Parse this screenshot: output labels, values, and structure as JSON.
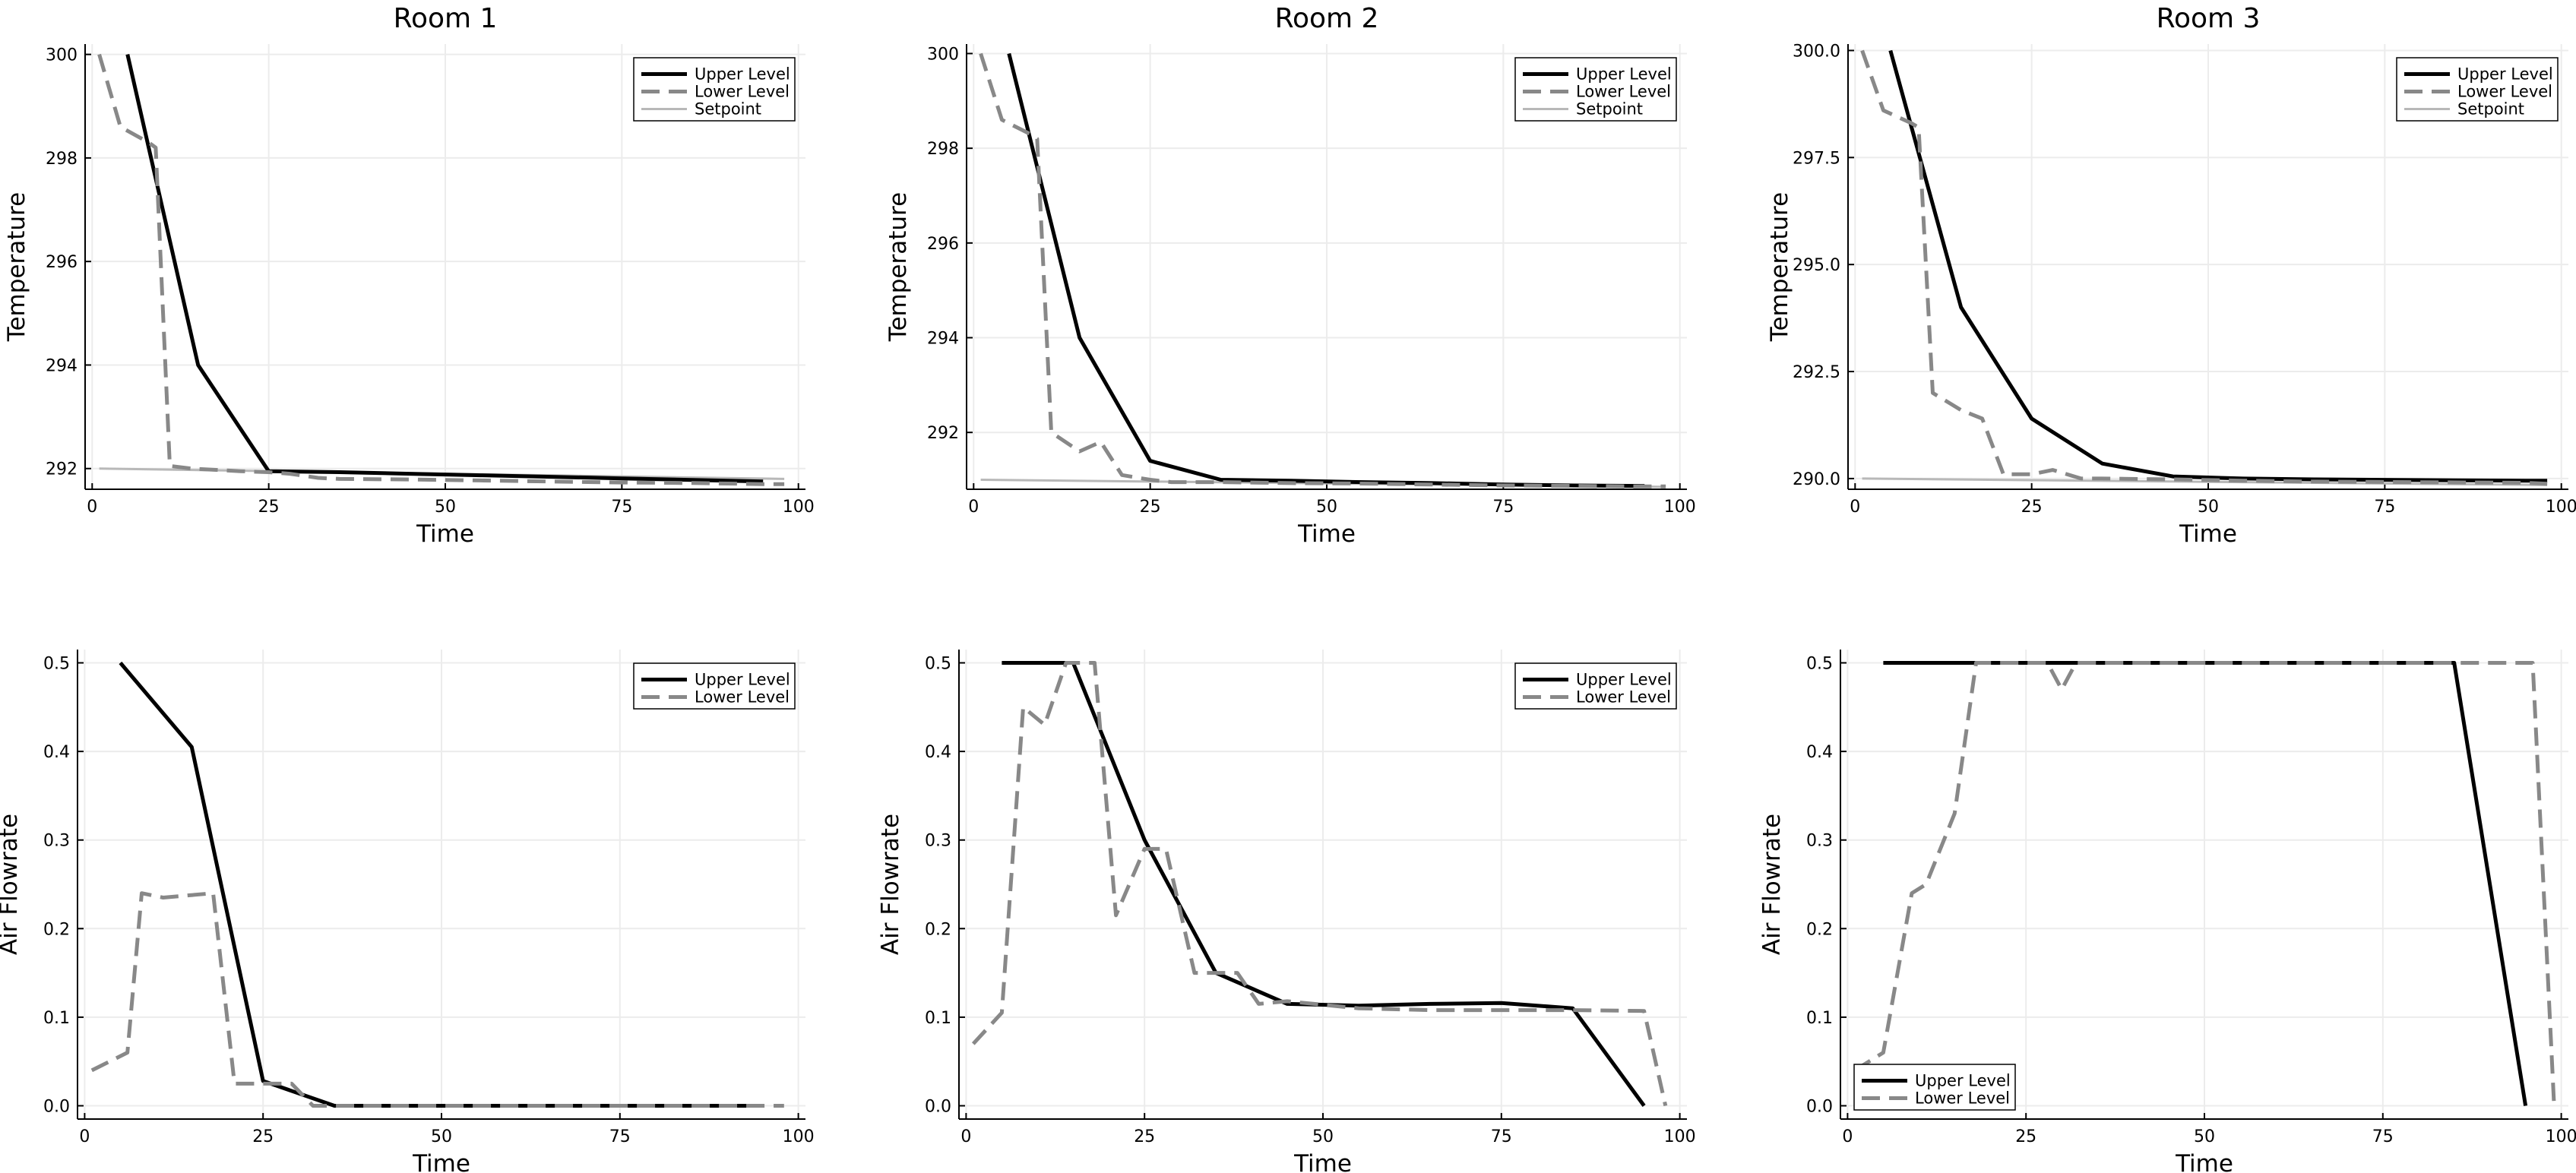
{
  "chart_data": [
    {
      "type": "line",
      "title": "Room 1",
      "xlabel": "Time",
      "ylabel": "Temperature",
      "xlim": [
        -1,
        101
      ],
      "ylim": [
        291.6,
        300.2
      ],
      "xticks": [
        0,
        25,
        50,
        75,
        100
      ],
      "xtick_labels": [
        "0",
        "25",
        "50",
        "75",
        "100"
      ],
      "yticks": [
        292,
        294,
        296,
        298,
        300
      ],
      "ytick_labels": [
        "292",
        "294",
        "296",
        "298",
        "300"
      ],
      "grid": true,
      "legend": "top-right",
      "series": [
        {
          "name": "Upper Level",
          "style": "solid-black",
          "x": [
            5,
            15,
            25,
            35,
            45,
            55,
            65,
            75,
            85,
            95
          ],
          "y": [
            300.0,
            294.0,
            291.95,
            291.93,
            291.9,
            291.87,
            291.84,
            291.81,
            291.78,
            291.75
          ]
        },
        {
          "name": "Lower Level",
          "style": "dashed-gray",
          "x": [
            1,
            4,
            8,
            9,
            11,
            14,
            18,
            21,
            25,
            28,
            32,
            35,
            45,
            55,
            65,
            75,
            85,
            95,
            98
          ],
          "y": [
            300.0,
            298.6,
            298.3,
            298.2,
            292.05,
            292.0,
            291.97,
            291.95,
            291.93,
            291.9,
            291.82,
            291.8,
            291.79,
            291.77,
            291.75,
            291.73,
            291.72,
            291.7,
            291.7
          ]
        },
        {
          "name": "Setpoint",
          "style": "thin-lightgray",
          "x": [
            1,
            98
          ],
          "y": [
            292.0,
            291.8
          ]
        }
      ]
    },
    {
      "type": "line",
      "title": "Room 2",
      "xlabel": "Time",
      "ylabel": "Temperature",
      "xlim": [
        -1,
        101
      ],
      "ylim": [
        290.8,
        300.2
      ],
      "xticks": [
        0,
        25,
        50,
        75,
        100
      ],
      "xtick_labels": [
        "0",
        "25",
        "50",
        "75",
        "100"
      ],
      "yticks": [
        292,
        294,
        296,
        298,
        300
      ],
      "ytick_labels": [
        "292",
        "294",
        "296",
        "298",
        "300"
      ],
      "grid": true,
      "legend": "top-right",
      "series": [
        {
          "name": "Upper Level",
          "style": "solid-black",
          "x": [
            5,
            15,
            25,
            35,
            45,
            55,
            65,
            75,
            85,
            95
          ],
          "y": [
            300.0,
            294.0,
            291.4,
            291.0,
            290.98,
            290.95,
            290.93,
            290.9,
            290.88,
            290.87
          ]
        },
        {
          "name": "Lower Level",
          "style": "dashed-gray",
          "x": [
            1,
            4,
            8,
            9,
            11,
            15,
            18,
            21,
            25,
            28,
            35,
            45,
            55,
            65,
            75,
            85,
            95,
            98
          ],
          "y": [
            300.0,
            298.6,
            298.3,
            298.2,
            292.0,
            291.6,
            291.8,
            291.1,
            291.0,
            290.95,
            290.95,
            290.93,
            290.92,
            290.9,
            290.88,
            290.87,
            290.86,
            290.86
          ]
        },
        {
          "name": "Setpoint",
          "style": "thin-lightgray",
          "x": [
            1,
            98
          ],
          "y": [
            291.0,
            290.85
          ]
        }
      ]
    },
    {
      "type": "line",
      "title": "Room 3",
      "xlabel": "Time",
      "ylabel": "Temperature",
      "xlim": [
        -1,
        101
      ],
      "ylim": [
        289.75,
        300.15
      ],
      "xticks": [
        0,
        25,
        50,
        75,
        100
      ],
      "xtick_labels": [
        "0",
        "25",
        "50",
        "75",
        "100"
      ],
      "yticks": [
        290,
        292.5,
        295,
        297.5,
        300
      ],
      "ytick_labels": [
        "290.0",
        "292.5",
        "295.0",
        "297.5",
        "300.0"
      ],
      "grid": true,
      "legend": "top-right",
      "series": [
        {
          "name": "Upper Level",
          "style": "solid-black",
          "x": [
            5,
            15,
            25,
            35,
            45,
            55,
            65,
            75,
            85,
            95,
            98
          ],
          "y": [
            300.0,
            294.0,
            291.4,
            290.35,
            290.05,
            290.0,
            289.98,
            289.97,
            289.96,
            289.95,
            289.95
          ]
        },
        {
          "name": "Lower Level",
          "style": "dashed-gray",
          "x": [
            1,
            4,
            8,
            9,
            11,
            15,
            18,
            21,
            25,
            28,
            32,
            35,
            45,
            55,
            65,
            75,
            85,
            95,
            98
          ],
          "y": [
            300.0,
            298.6,
            298.3,
            298.2,
            292.0,
            291.6,
            291.4,
            290.1,
            290.1,
            290.2,
            290.0,
            290.0,
            289.98,
            289.95,
            289.93,
            289.92,
            289.91,
            289.9,
            289.88
          ]
        },
        {
          "name": "Setpoint",
          "style": "thin-lightgray",
          "x": [
            1,
            98
          ],
          "y": [
            290.0,
            289.85
          ]
        }
      ]
    },
    {
      "type": "line",
      "title": "",
      "xlabel": "Time",
      "ylabel": "Air Flowrate",
      "xlim": [
        -1,
        101
      ],
      "ylim": [
        -0.015,
        0.515
      ],
      "xticks": [
        0,
        25,
        50,
        75,
        100
      ],
      "xtick_labels": [
        "0",
        "25",
        "50",
        "75",
        "100"
      ],
      "yticks": [
        0,
        0.1,
        0.2,
        0.3,
        0.4,
        0.5
      ],
      "ytick_labels": [
        "0.0",
        "0.1",
        "0.2",
        "0.3",
        "0.4",
        "0.5"
      ],
      "grid": true,
      "legend": "top-right",
      "series": [
        {
          "name": "Upper Level",
          "style": "solid-black",
          "x": [
            5,
            15,
            25,
            35,
            45,
            55,
            65,
            75,
            85,
            95
          ],
          "y": [
            0.5,
            0.405,
            0.028,
            0.0,
            0.0,
            0.0,
            0.0,
            0.0,
            0.0,
            0.0
          ]
        },
        {
          "name": "Lower Level",
          "style": "dashed-gray",
          "x": [
            1,
            6,
            8,
            11,
            18,
            21,
            25,
            29,
            32,
            35,
            45,
            55,
            65,
            75,
            85,
            98
          ],
          "y": [
            0.04,
            0.06,
            0.24,
            0.235,
            0.24,
            0.025,
            0.025,
            0.025,
            0.0,
            0.0,
            0.0,
            0.0,
            0.0,
            0.0,
            0.0,
            0.0
          ]
        }
      ]
    },
    {
      "type": "line",
      "title": "",
      "xlabel": "Time",
      "ylabel": "Air Flowrate",
      "xlim": [
        -1,
        101
      ],
      "ylim": [
        -0.015,
        0.515
      ],
      "xticks": [
        0,
        25,
        50,
        75,
        100
      ],
      "xtick_labels": [
        "0",
        "25",
        "50",
        "75",
        "100"
      ],
      "yticks": [
        0,
        0.1,
        0.2,
        0.3,
        0.4,
        0.5
      ],
      "ytick_labels": [
        "0.0",
        "0.1",
        "0.2",
        "0.3",
        "0.4",
        "0.5"
      ],
      "grid": true,
      "legend": "top-right",
      "series": [
        {
          "name": "Upper Level",
          "style": "solid-black",
          "x": [
            5,
            15,
            25,
            35,
            45,
            55,
            65,
            75,
            85,
            95
          ],
          "y": [
            0.5,
            0.5,
            0.3,
            0.15,
            0.115,
            0.113,
            0.115,
            0.116,
            0.11,
            0.0
          ]
        },
        {
          "name": "Lower Level",
          "style": "dashed-gray",
          "x": [
            1,
            5,
            8,
            11,
            14,
            18,
            21,
            25,
            28,
            32,
            38,
            41,
            45,
            55,
            65,
            75,
            85,
            95,
            98
          ],
          "y": [
            0.07,
            0.105,
            0.45,
            0.43,
            0.5,
            0.5,
            0.215,
            0.29,
            0.29,
            0.15,
            0.15,
            0.115,
            0.118,
            0.11,
            0.108,
            0.108,
            0.108,
            0.107,
            0.0
          ]
        }
      ]
    },
    {
      "type": "line",
      "title": "",
      "xlabel": "Time",
      "ylabel": "Air Flowrate",
      "xlim": [
        -1,
        101
      ],
      "ylim": [
        -0.015,
        0.515
      ],
      "xticks": [
        0,
        25,
        50,
        75,
        100
      ],
      "xtick_labels": [
        "0",
        "25",
        "50",
        "75",
        "100"
      ],
      "yticks": [
        0,
        0.1,
        0.2,
        0.3,
        0.4,
        0.5
      ],
      "ytick_labels": [
        "0.0",
        "0.1",
        "0.2",
        "0.3",
        "0.4",
        "0.5"
      ],
      "grid": true,
      "legend": "bottom-left",
      "series": [
        {
          "name": "Upper Level",
          "style": "solid-black",
          "x": [
            5,
            15,
            25,
            35,
            45,
            55,
            65,
            75,
            85,
            95
          ],
          "y": [
            0.5,
            0.5,
            0.5,
            0.5,
            0.5,
            0.5,
            0.5,
            0.5,
            0.5,
            0.0
          ]
        },
        {
          "name": "Lower Level",
          "style": "dashed-gray",
          "x": [
            1,
            5,
            9,
            11,
            15,
            18,
            28,
            30,
            32,
            45,
            55,
            65,
            75,
            85,
            96,
            99
          ],
          "y": [
            0.04,
            0.06,
            0.24,
            0.25,
            0.33,
            0.5,
            0.5,
            0.47,
            0.5,
            0.5,
            0.5,
            0.5,
            0.5,
            0.5,
            0.5,
            0.0
          ]
        }
      ]
    }
  ]
}
